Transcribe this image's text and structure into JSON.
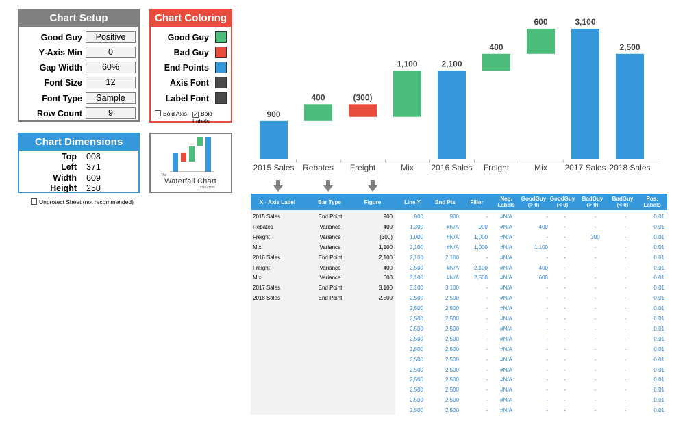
{
  "chart_setup": {
    "title": "Chart Setup",
    "rows": [
      {
        "label": "Good Guy",
        "value": "Positive"
      },
      {
        "label": "Y-Axis Min",
        "value": "0"
      },
      {
        "label": "Gap Width",
        "value": "60%"
      },
      {
        "label": "Font Size",
        "value": "12"
      },
      {
        "label": "Font Type",
        "value": "Sample"
      },
      {
        "label": "Row Count",
        "value": "9"
      }
    ]
  },
  "chart_coloring": {
    "title": "Chart Coloring",
    "rows": [
      {
        "label": "Good Guy",
        "color": "#4dbd7c"
      },
      {
        "label": "Bad Guy",
        "color": "#e74c3c"
      },
      {
        "label": "End Points",
        "color": "#3498db"
      },
      {
        "label": "Axis Font",
        "color": "#4a4a4a"
      },
      {
        "label": "Label Font",
        "color": "#4a4a4a"
      }
    ],
    "bold_axis_label": "Bold Axis",
    "bold_axis_checked": false,
    "bold_labels_label": "Bold Labels",
    "bold_labels_checked": true
  },
  "chart_dimensions": {
    "title": "Chart Dimensions",
    "rows": [
      {
        "label": "Top",
        "value": "008"
      },
      {
        "label": "Left",
        "value": "371"
      },
      {
        "label": "Width",
        "value": "609"
      },
      {
        "label": "Height",
        "value": "250"
      }
    ]
  },
  "logo": {
    "small_text": "The",
    "main_text": "Waterfall Chart",
    "sub_text": "CREATOR"
  },
  "unprotect": {
    "label": "Unprotect Sheet  (not recommended)",
    "checked": false
  },
  "chart_data": {
    "type": "bar",
    "subtype": "waterfall",
    "categories": [
      "2015 Sales",
      "Rebates",
      "Freight",
      "Mix",
      "2016 Sales",
      "Freight",
      "Mix",
      "2017 Sales",
      "2018 Sales"
    ],
    "series": [
      {
        "name": "Filler",
        "values": [
          0,
          900,
          1000,
          1000,
          0,
          2100,
          2500,
          0,
          0
        ]
      },
      {
        "name": "Bar",
        "values": [
          900,
          400,
          300,
          1100,
          2100,
          400,
          600,
          3100,
          2500
        ]
      }
    ],
    "bar_kind": [
      "end",
      "good",
      "bad",
      "good",
      "end",
      "good",
      "good",
      "end",
      "end"
    ],
    "labels": [
      "900",
      "400",
      "(300)",
      "1,100",
      "2,100",
      "400",
      "600",
      "3,100",
      "2,500"
    ],
    "ylim": [
      0,
      3100
    ],
    "colors": {
      "good": "#4dbd7c",
      "bad": "#e74c3c",
      "end": "#3498db"
    },
    "title": "",
    "xlabel": "",
    "ylabel": ""
  },
  "table": {
    "headers": [
      "X - Axis Label",
      "Bar Type",
      "Figure",
      "Line Y",
      "End Pts",
      "Filler",
      "Neg. Labels",
      "GoodGuy (> 0)",
      "GoodGuy (< 0)",
      "BadGuy (> 0)",
      "BadGuy (< 0)",
      "Pos. Labels"
    ],
    "input_rows": [
      [
        "2015 Sales",
        "End Point",
        "900"
      ],
      [
        "Rebates",
        "Variance",
        "400"
      ],
      [
        "Freight",
        "Variance",
        "(300)"
      ],
      [
        "Mix",
        "Variance",
        "1,100"
      ],
      [
        "2016 Sales",
        "End Point",
        "2,100"
      ],
      [
        "Freight",
        "Variance",
        "400"
      ],
      [
        "Mix",
        "Variance",
        "600"
      ],
      [
        "2017 Sales",
        "End Point",
        "3,100"
      ],
      [
        "2018 Sales",
        "End Point",
        "2,500"
      ]
    ],
    "calc_rows": [
      [
        "900",
        "900",
        "-",
        "#N/A",
        "-",
        "-",
        "-",
        "-",
        "0.01"
      ],
      [
        "1,300",
        "#N/A",
        "900",
        "#N/A",
        "400",
        "-",
        "-",
        "-",
        "0.01"
      ],
      [
        "1,000",
        "#N/A",
        "1,000",
        "#N/A",
        "-",
        "-",
        "300",
        "-",
        "0.01"
      ],
      [
        "2,100",
        "#N/A",
        "1,000",
        "#N/A",
        "1,100",
        "-",
        "-",
        "-",
        "0.01"
      ],
      [
        "2,100",
        "2,100",
        "-",
        "#N/A",
        "-",
        "-",
        "-",
        "-",
        "0.01"
      ],
      [
        "2,500",
        "#N/A",
        "2,100",
        "#N/A",
        "400",
        "-",
        "-",
        "-",
        "0.01"
      ],
      [
        "3,100",
        "#N/A",
        "2,500",
        "#N/A",
        "600",
        "-",
        "-",
        "-",
        "0.01"
      ],
      [
        "3,100",
        "3,100",
        "-",
        "#N/A",
        "-",
        "-",
        "-",
        "-",
        "0.01"
      ],
      [
        "2,500",
        "2,500",
        "-",
        "#N/A",
        "-",
        "-",
        "-",
        "-",
        "0.01"
      ],
      [
        "2,500",
        "2,500",
        "-",
        "#N/A",
        "-",
        "-",
        "-",
        "-",
        "0.01"
      ],
      [
        "2,500",
        "2,500",
        "-",
        "#N/A",
        "-",
        "-",
        "-",
        "-",
        "0.01"
      ],
      [
        "2,500",
        "2,500",
        "-",
        "#N/A",
        "-",
        "-",
        "-",
        "-",
        "0.01"
      ],
      [
        "2,500",
        "2,500",
        "-",
        "#N/A",
        "-",
        "-",
        "-",
        "-",
        "0.01"
      ],
      [
        "2,500",
        "2,500",
        "-",
        "#N/A",
        "-",
        "-",
        "-",
        "-",
        "0.01"
      ],
      [
        "2,500",
        "2,500",
        "-",
        "#N/A",
        "-",
        "-",
        "-",
        "-",
        "0.01"
      ],
      [
        "2,500",
        "2,500",
        "-",
        "#N/A",
        "-",
        "-",
        "-",
        "-",
        "0.01"
      ],
      [
        "2,500",
        "2,500",
        "-",
        "#N/A",
        "-",
        "-",
        "-",
        "-",
        "0.01"
      ],
      [
        "2,500",
        "2,500",
        "-",
        "#N/A",
        "-",
        "-",
        "-",
        "-",
        "0.01"
      ],
      [
        "2,500",
        "2,500",
        "-",
        "#N/A",
        "-",
        "-",
        "-",
        "-",
        "0.01"
      ],
      [
        "2,500",
        "2,500",
        "-",
        "#N/A",
        "-",
        "-",
        "-",
        "-",
        "0.01"
      ]
    ]
  }
}
